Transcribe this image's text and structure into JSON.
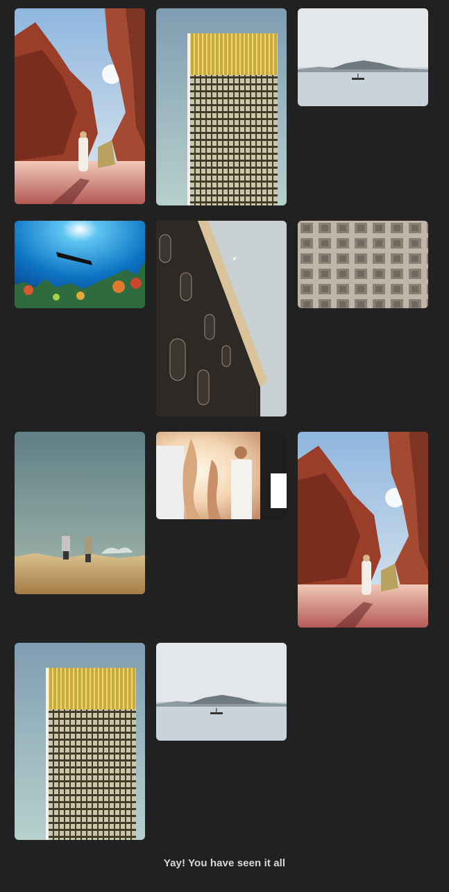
{
  "gallery": {
    "photos": [
      {
        "subject": "desert-canyon-walker"
      },
      {
        "subject": "gold-glass-skyscraper"
      },
      {
        "subject": "lake-island-boat"
      },
      {
        "subject": "scuba-diver-coral-reef"
      },
      {
        "subject": "ornate-building-facade"
      },
      {
        "subject": "pantheon-dome-coffers"
      },
      {
        "subject": "hikers-on-rocks"
      },
      {
        "subject": "friends-at-beach-party"
      },
      {
        "subject": "desert-canyon-walker"
      },
      {
        "subject": "gold-glass-skyscraper"
      },
      {
        "subject": "lake-island-boat"
      }
    ],
    "end_message": "Yay! You have seen it all"
  },
  "colors": {
    "background": "#212121",
    "end_message": "#d8d8d8"
  }
}
